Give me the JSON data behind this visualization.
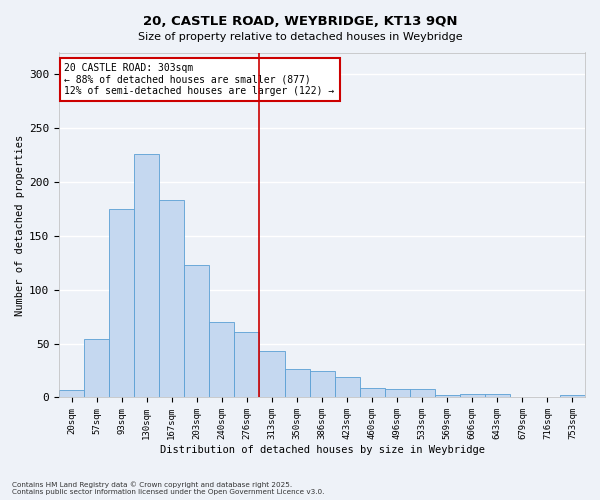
{
  "title_line1": "20, CASTLE ROAD, WEYBRIDGE, KT13 9QN",
  "title_line2": "Size of property relative to detached houses in Weybridge",
  "xlabel": "Distribution of detached houses by size in Weybridge",
  "ylabel": "Number of detached properties",
  "categories": [
    "20sqm",
    "57sqm",
    "93sqm",
    "130sqm",
    "167sqm",
    "203sqm",
    "240sqm",
    "276sqm",
    "313sqm",
    "350sqm",
    "386sqm",
    "423sqm",
    "460sqm",
    "496sqm",
    "533sqm",
    "569sqm",
    "606sqm",
    "643sqm",
    "679sqm",
    "716sqm",
    "753sqm"
  ],
  "values": [
    7,
    54,
    175,
    226,
    183,
    123,
    70,
    61,
    43,
    26,
    25,
    19,
    9,
    8,
    8,
    2,
    3,
    3,
    0,
    0,
    2
  ],
  "bar_color": "#c5d8f0",
  "bar_edge_color": "#5a9fd4",
  "vline_index": 8,
  "annotation_text_line1": "20 CASTLE ROAD: 303sqm",
  "annotation_text_line2": "← 88% of detached houses are smaller (877)",
  "annotation_text_line3": "12% of semi-detached houses are larger (122) →",
  "annotation_box_facecolor": "#ffffff",
  "annotation_box_edgecolor": "#cc0000",
  "vline_color": "#cc0000",
  "ylim": [
    0,
    320
  ],
  "yticks": [
    0,
    50,
    100,
    150,
    200,
    250,
    300
  ],
  "background_color": "#eef2f8",
  "grid_color": "#ffffff",
  "footer_line1": "Contains HM Land Registry data © Crown copyright and database right 2025.",
  "footer_line2": "Contains public sector information licensed under the Open Government Licence v3.0."
}
